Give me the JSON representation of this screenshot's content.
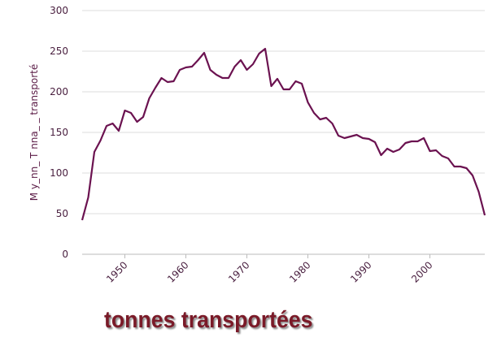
{
  "chart_data": {
    "type": "line",
    "title": "",
    "xlabel": "",
    "ylabel": "M y_nn_ T nna_ _ transporté",
    "xlim": [
      1943,
      2009
    ],
    "ylim": [
      0,
      300
    ],
    "x_ticks": [
      1950,
      1960,
      1970,
      1980,
      1990,
      2000
    ],
    "y_ticks": [
      0,
      50,
      100,
      150,
      200,
      250,
      300
    ],
    "grid": "horizontal",
    "line_color": "#6b1250",
    "series": [
      {
        "name": "",
        "x": [
          1943,
          1944,
          1945,
          1946,
          1947,
          1948,
          1949,
          1950,
          1951,
          1952,
          1953,
          1954,
          1955,
          1956,
          1957,
          1958,
          1959,
          1960,
          1961,
          1962,
          1963,
          1964,
          1965,
          1966,
          1967,
          1968,
          1969,
          1970,
          1971,
          1972,
          1973,
          1974,
          1975,
          1976,
          1977,
          1978,
          1979,
          1980,
          1981,
          1982,
          1983,
          1984,
          1985,
          1986,
          1987,
          1988,
          1989,
          1990,
          1991,
          1992,
          1993,
          1994,
          1995,
          1996,
          1997,
          1998,
          1999,
          2000,
          2001,
          2002,
          2003,
          2004,
          2005,
          2006,
          2007,
          2008,
          2009
        ],
        "values": [
          42,
          70,
          126,
          140,
          158,
          161,
          152,
          177,
          174,
          163,
          169,
          192,
          205,
          217,
          212,
          213,
          227,
          230,
          231,
          239,
          248,
          227,
          221,
          217,
          217,
          231,
          239,
          227,
          234,
          247,
          253,
          207,
          216,
          203,
          203,
          213,
          210,
          187,
          174,
          166,
          168,
          161,
          146,
          143,
          145,
          147,
          143,
          142,
          138,
          122,
          130,
          126,
          129,
          137,
          139,
          139,
          143,
          127,
          128,
          121,
          118,
          108,
          108,
          106,
          97,
          77,
          48
        ]
      }
    ]
  },
  "caption": {
    "text": "tonnes transportées"
  }
}
